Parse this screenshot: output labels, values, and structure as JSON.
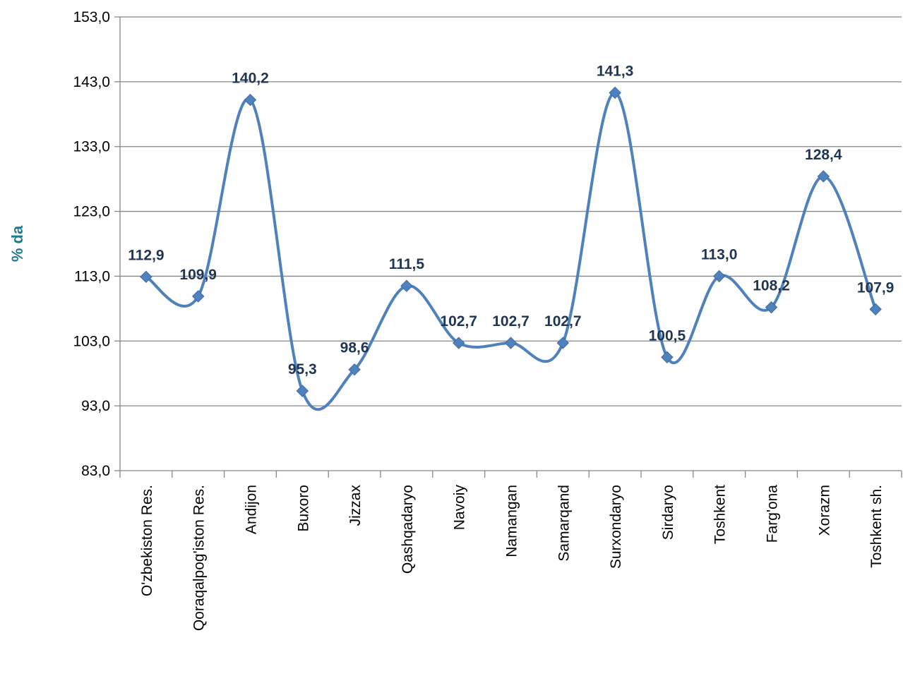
{
  "chart_data": {
    "type": "line",
    "title": "",
    "xlabel": "",
    "ylabel": "% da",
    "ylim": [
      83,
      153
    ],
    "yticks": [
      "153,0",
      "143,0",
      "133,0",
      "123,0",
      "113,0",
      "103,0",
      "93,0",
      "83,0"
    ],
    "ytick_values": [
      153,
      143,
      133,
      123,
      113,
      103,
      93,
      83
    ],
    "grid": true,
    "smooth": true,
    "categories": [
      "O'zbekiston Res.",
      "Qoraqalpog'iston Res.",
      "Andijon",
      "Buxoro",
      "Jizzax",
      "Qashqadaryo",
      "Navoiy",
      "Namangan",
      "Samarqand",
      "Surxondaryo",
      "Sirdaryo",
      "Toshkent",
      "Farg'ona",
      "Xorazm",
      "Toshkent sh."
    ],
    "series": [
      {
        "values": [
          112.9,
          109.9,
          140.2,
          95.3,
          98.6,
          111.5,
          102.7,
          102.7,
          102.7,
          141.3,
          100.5,
          113.0,
          108.2,
          128.4,
          107.9
        ],
        "labels": [
          "112,9",
          "109,9",
          "140,2",
          "95,3",
          "98,6",
          "111,5",
          "102,7",
          "102,7",
          "102,7",
          "141,3",
          "100,5",
          "113,0",
          "108,2",
          "128,4",
          "107,9"
        ],
        "color": "#4f81bd"
      }
    ],
    "colors": {
      "line": "#4f81bd",
      "label": "#1f3552",
      "ylabel": "#1f7a8c",
      "grid": "#868686"
    }
  }
}
